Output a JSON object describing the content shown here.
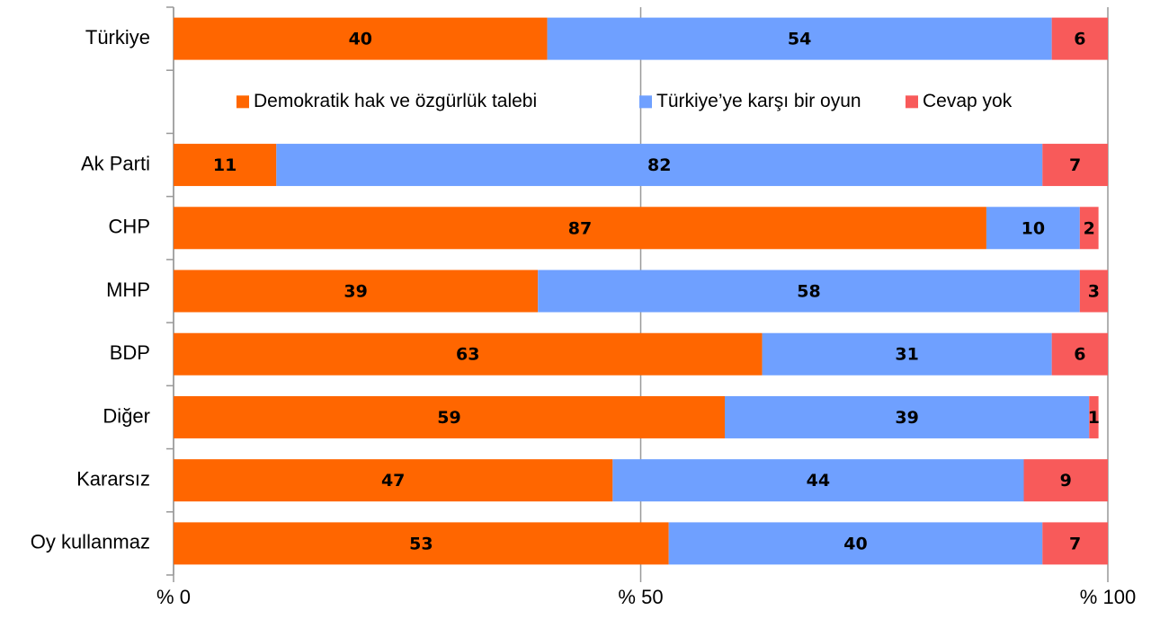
{
  "chart_data": {
    "type": "stacked_barh",
    "categories": [
      "Türkiye",
      null,
      "Ak Parti",
      "CHP",
      "MHP",
      "BDP",
      "Diğer",
      "Kararsız",
      "Oy kullanmaz"
    ],
    "series": [
      {
        "name": "Demokratik hak ve özgürlük talebi",
        "color": "#ff6600",
        "values": [
          40,
          null,
          11,
          87,
          39,
          63,
          59,
          47,
          53
        ]
      },
      {
        "name": "Türkiye’ye karşı bir oyun",
        "color": "#6fa0ff",
        "values": [
          54,
          null,
          82,
          10,
          58,
          31,
          39,
          44,
          40
        ]
      },
      {
        "name": "Cevap yok",
        "color": "#f85a5a",
        "values": [
          6,
          null,
          7,
          2,
          3,
          6,
          1,
          9,
          7
        ]
      }
    ],
    "xlim": [
      0,
      100
    ],
    "xticks": [
      {
        "value": 0,
        "label": "% 0"
      },
      {
        "value": 50,
        "label": "% 50"
      },
      {
        "value": 100,
        "label": "% 100"
      }
    ],
    "grid": true
  }
}
